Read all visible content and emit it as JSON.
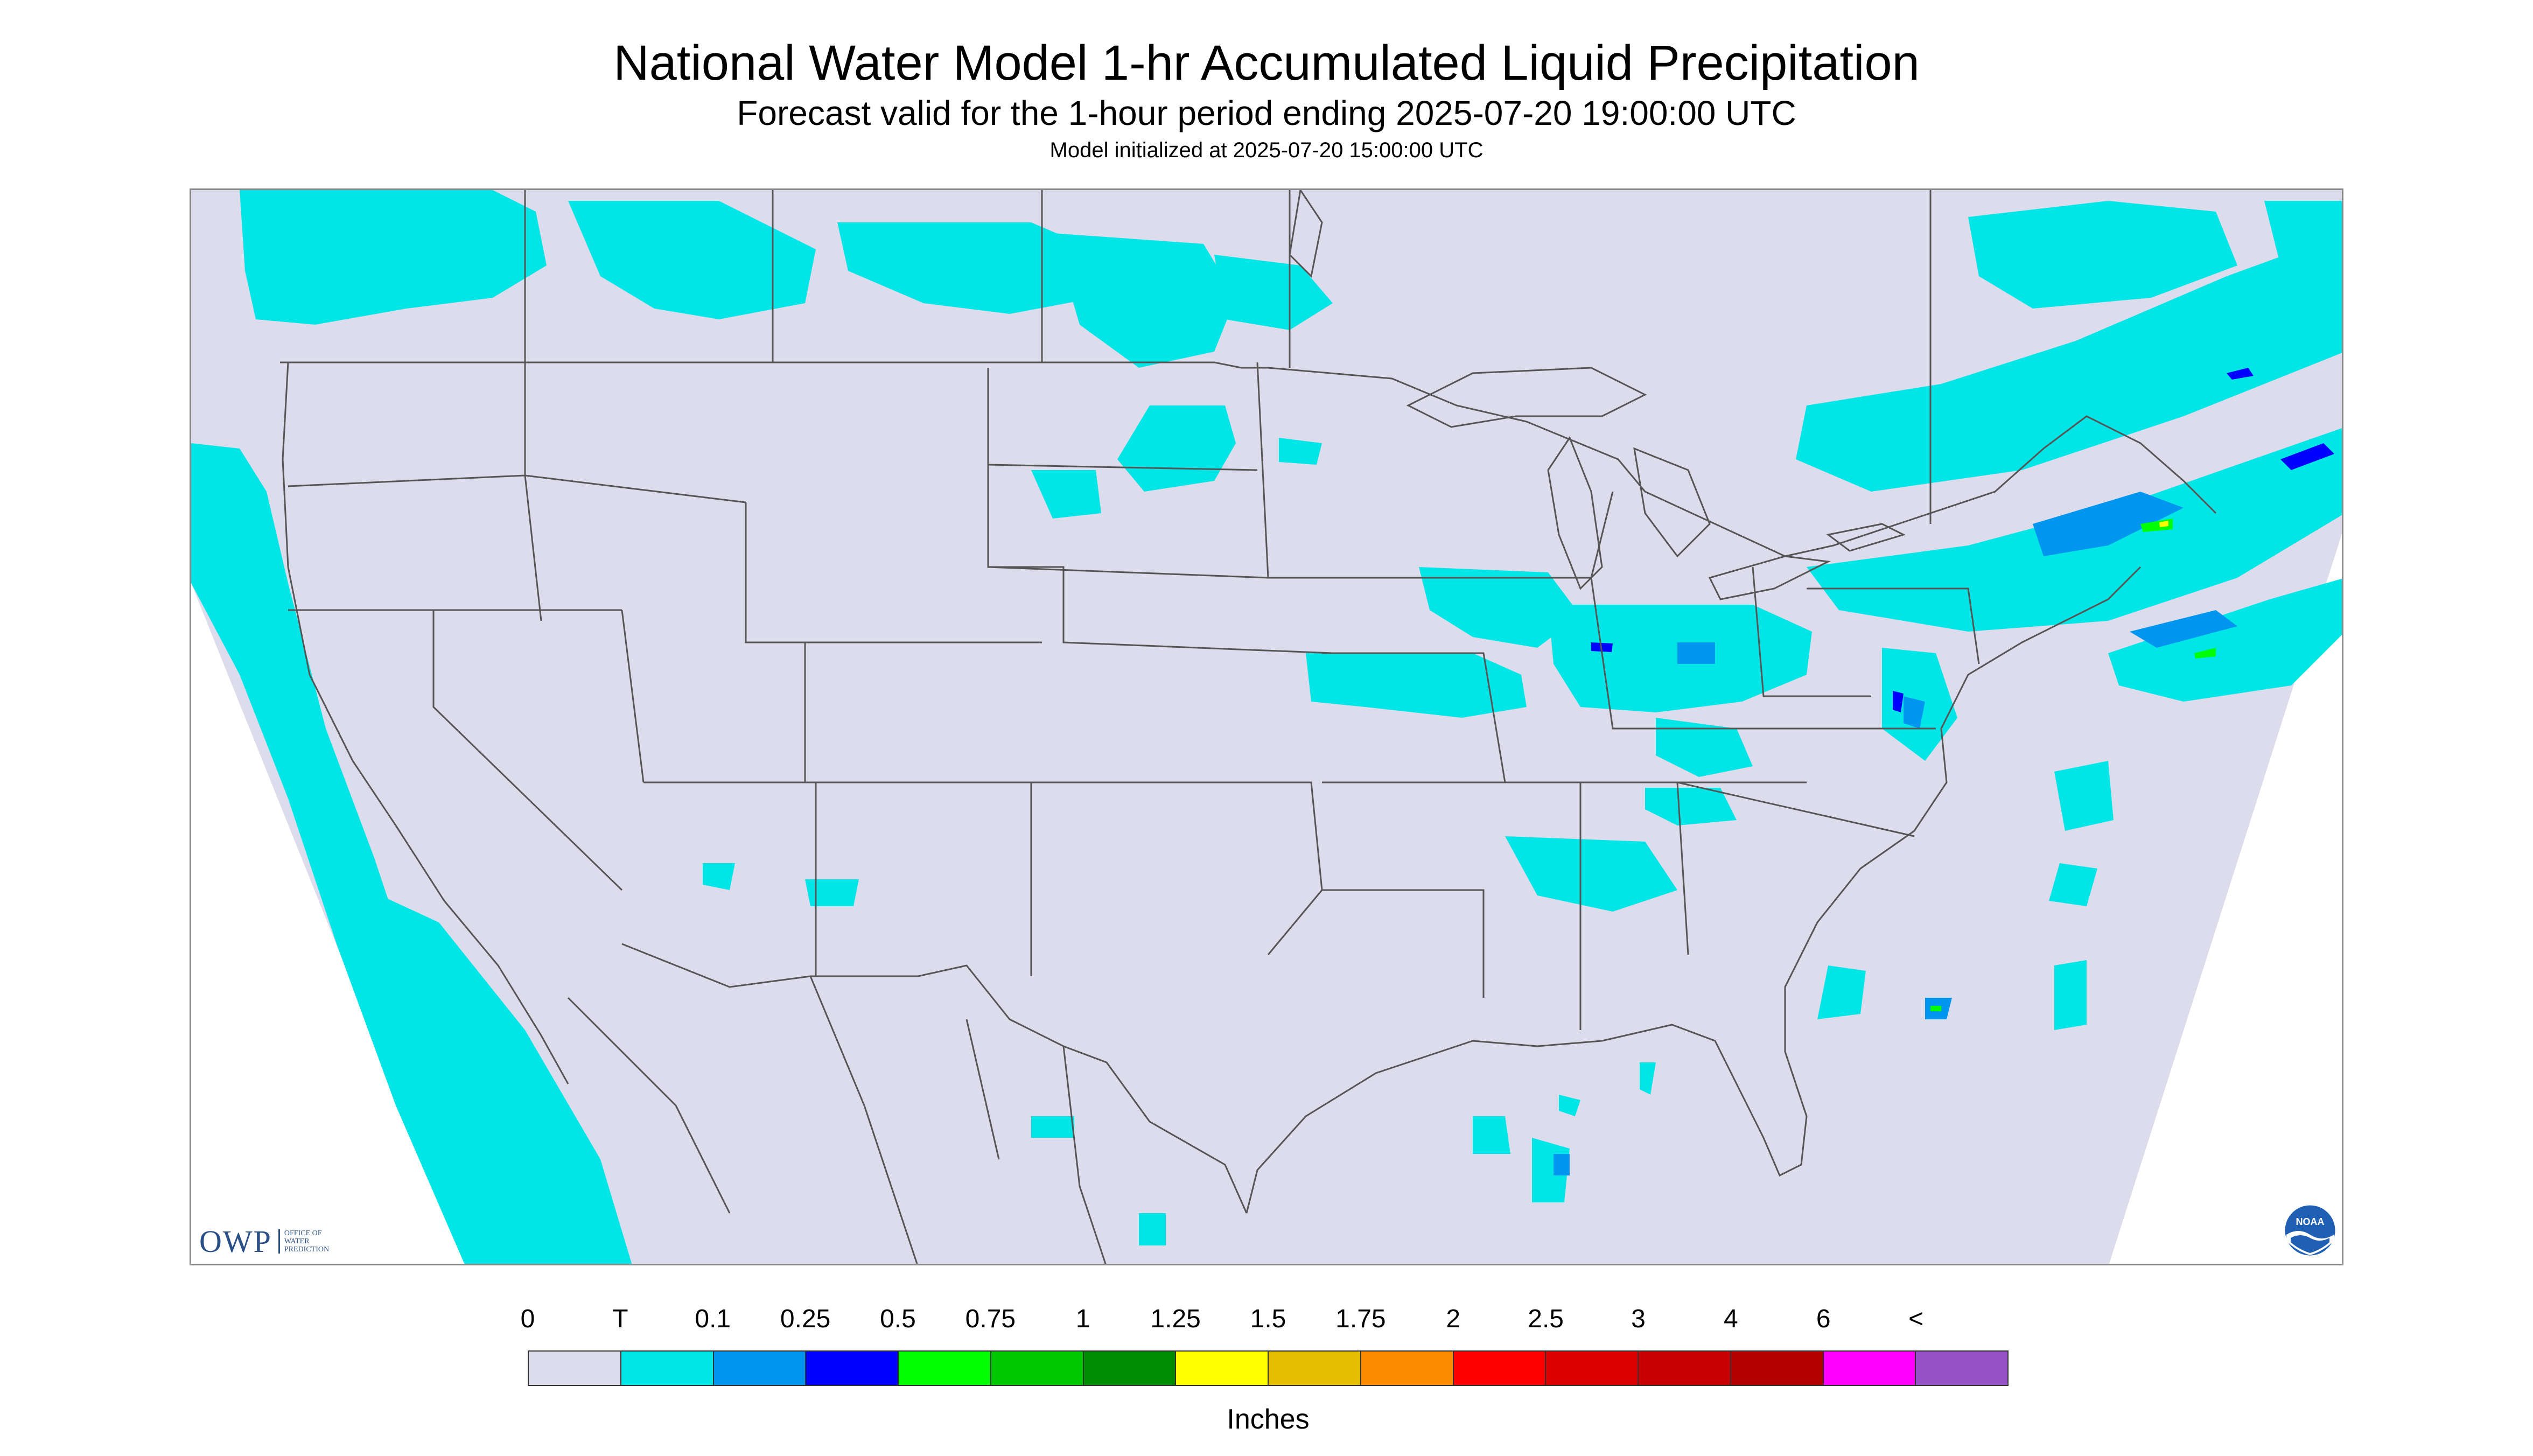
{
  "header": {
    "title": "National Water Model 1-hr Accumulated Liquid Precipitation",
    "subtitle": "Forecast valid for the 1-hour period ending 2025-07-20 19:00:00 UTC",
    "init": "Model initialized at 2025-07-20 15:00:00 UTC"
  },
  "map": {
    "background_color": "#dcdcec",
    "outside_color": "#ffffff",
    "border_color": "#555555",
    "precip_color_trace": "#00e6e6",
    "precip_color_light": "#0096f0",
    "precip_color_blue": "#0000ff",
    "precip_color_green": "#00ff00",
    "precip_color_yellow": "#ffff00"
  },
  "logos": {
    "owp_mark": "OWP",
    "owp_text": "OFFICE OF\nWATER\nPREDICTION",
    "noaa_icon": "noaa-logo-icon",
    "noaa_text": "NOAA"
  },
  "legend": {
    "labels": [
      "0",
      "T",
      "0.1",
      "0.25",
      "0.5",
      "0.75",
      "1",
      "1.25",
      "1.5",
      "1.75",
      "2",
      "2.5",
      "3",
      "4",
      "6",
      "<"
    ],
    "colors": [
      "#dcdcec",
      "#00e6e6",
      "#0096f0",
      "#0000ff",
      "#00ff00",
      "#00c800",
      "#008c00",
      "#ffff00",
      "#e6be00",
      "#ff8c00",
      "#ff0000",
      "#dc0000",
      "#c80000",
      "#b40000",
      "#ff00ff",
      "#9650c8"
    ],
    "units": "Inches"
  }
}
